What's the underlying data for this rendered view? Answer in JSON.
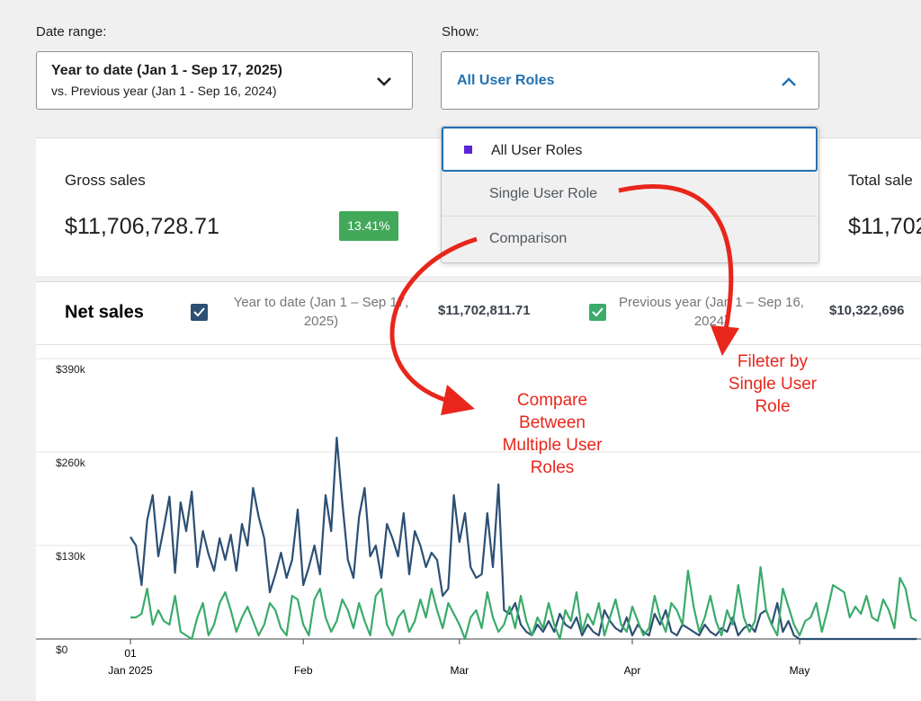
{
  "filters": {
    "date_range": {
      "label": "Date range:",
      "value": "Year to date (Jan 1 - Sep 17, 2025)",
      "compare": "vs. Previous year (Jan 1 - Sep 16, 2024)"
    },
    "show": {
      "label": "Show:",
      "value": "All User Roles",
      "options": [
        "All User Roles",
        "Single User Role",
        "Comparison"
      ]
    }
  },
  "summary": [
    {
      "label": "Gross sales",
      "value": "$11,706,728.71",
      "change": "13.41%"
    },
    {
      "label": "Total sale",
      "value": "$11,702"
    }
  ],
  "annotations": [
    "Compare Between Multiple User Roles",
    "Fileter by Single User Role"
  ],
  "chart_data": {
    "type": "line",
    "title": "Net sales",
    "categories": [
      "01",
      null,
      null,
      null,
      null,
      null,
      null,
      null,
      null,
      null,
      null,
      null,
      null,
      null,
      null,
      null,
      null,
      null,
      null,
      null,
      null,
      null,
      null,
      null,
      null,
      null,
      null,
      null,
      null,
      null,
      null,
      "Feb",
      null,
      null,
      null,
      null,
      null,
      null,
      null,
      null,
      null,
      null,
      null,
      null,
      null,
      null,
      null,
      null,
      null,
      null,
      null,
      null,
      null,
      null,
      null,
      null,
      null,
      null,
      null,
      "Mar",
      null,
      null,
      null,
      null,
      null,
      null,
      null,
      null,
      null,
      null,
      null,
      null,
      null,
      null,
      null,
      null,
      null,
      null,
      null,
      null,
      null,
      null,
      null,
      null,
      null,
      null,
      null,
      null,
      null,
      null,
      "Apr",
      null,
      null,
      null,
      null,
      null,
      null,
      null,
      null,
      null,
      null,
      null,
      null,
      null,
      null,
      null,
      null,
      null,
      null,
      null,
      null,
      null,
      null,
      null,
      null,
      null,
      null,
      null,
      null,
      null,
      "May",
      null,
      null,
      null,
      null,
      null,
      null,
      null,
      null,
      null,
      null,
      null,
      null,
      null,
      null,
      null,
      null,
      null,
      null,
      null,
      null,
      null
    ],
    "x_sublabel": "Jan 2025",
    "ylim": [
      0,
      390000
    ],
    "yticks": [
      {
        "value": 0,
        "label": "$0"
      },
      {
        "value": 130000,
        "label": "$130k"
      },
      {
        "value": 260000,
        "label": "$260k"
      },
      {
        "value": 390000,
        "label": "$390k"
      }
    ],
    "grid": true,
    "series": [
      {
        "name": "Year to date (Jan 1 – Sep 17, 2025)",
        "total": "$11,702,811.71",
        "color": "#2c4f74",
        "values": [
          142000,
          130000,
          75000,
          165000,
          200000,
          115000,
          155000,
          198000,
          92000,
          190000,
          150000,
          205000,
          100000,
          150000,
          118000,
          95000,
          140000,
          110000,
          145000,
          95000,
          160000,
          130000,
          210000,
          170000,
          140000,
          65000,
          90000,
          120000,
          85000,
          110000,
          180000,
          75000,
          100000,
          130000,
          90000,
          200000,
          150000,
          280000,
          190000,
          110000,
          85000,
          170000,
          210000,
          115000,
          130000,
          85000,
          160000,
          140000,
          115000,
          175000,
          90000,
          150000,
          130000,
          100000,
          120000,
          110000,
          60000,
          70000,
          200000,
          135000,
          175000,
          100000,
          85000,
          90000,
          175000,
          100000,
          215000,
          40000,
          35000,
          50000,
          20000,
          10000,
          5000,
          20000,
          10000,
          25000,
          10000,
          35000,
          20000,
          15000,
          30000,
          5000,
          20000,
          10000,
          5000,
          40000,
          25000,
          15000,
          10000,
          30000,
          5000,
          20000,
          10000,
          5000,
          35000,
          20000,
          40000,
          10000,
          5000,
          20000,
          15000,
          10000,
          5000,
          20000,
          10000,
          5000,
          15000,
          10000,
          30000,
          5000,
          15000,
          20000,
          10000,
          35000,
          40000,
          20000,
          50000,
          10000,
          25000,
          5000,
          0,
          0,
          0,
          0,
          0,
          0,
          0,
          0,
          0,
          0,
          0,
          0,
          0,
          0,
          0,
          0,
          0,
          0,
          0,
          0,
          0,
          0
        ]
      },
      {
        "name": "Previous year (Jan 1 – Sep 16, 2024)",
        "total": "$10,322,696",
        "color": "#3aab6b",
        "values": [
          30000,
          30000,
          35000,
          70000,
          20000,
          40000,
          25000,
          20000,
          60000,
          10000,
          5000,
          0,
          30000,
          50000,
          5000,
          20000,
          50000,
          65000,
          40000,
          10000,
          30000,
          45000,
          25000,
          5000,
          20000,
          50000,
          40000,
          15000,
          5000,
          60000,
          55000,
          20000,
          5000,
          55000,
          70000,
          30000,
          10000,
          25000,
          55000,
          40000,
          15000,
          50000,
          25000,
          5000,
          60000,
          70000,
          20000,
          5000,
          30000,
          40000,
          10000,
          25000,
          55000,
          30000,
          70000,
          40000,
          15000,
          50000,
          35000,
          20000,
          0,
          30000,
          40000,
          15000,
          65000,
          30000,
          10000,
          20000,
          45000,
          15000,
          60000,
          25000,
          5000,
          30000,
          15000,
          50000,
          20000,
          0,
          40000,
          25000,
          65000,
          10000,
          35000,
          20000,
          50000,
          5000,
          30000,
          55000,
          20000,
          10000,
          45000,
          25000,
          5000,
          15000,
          60000,
          30000,
          10000,
          50000,
          40000,
          20000,
          95000,
          45000,
          10000,
          30000,
          60000,
          25000,
          5000,
          40000,
          20000,
          75000,
          30000,
          10000,
          25000,
          100000,
          40000,
          20000,
          5000,
          70000,
          45000,
          20000,
          5000,
          25000,
          30000,
          50000,
          10000,
          40000,
          75000,
          70000,
          65000,
          30000,
          45000,
          35000,
          60000,
          30000,
          25000,
          55000,
          40000,
          15000,
          85000,
          70000,
          30000,
          25000
        ]
      }
    ]
  }
}
